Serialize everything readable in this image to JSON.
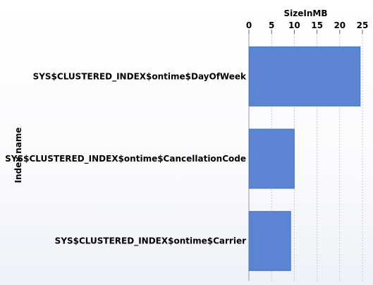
{
  "chart_data": {
    "type": "bar",
    "orientation": "horizontal",
    "xlabel": "SizeInMB",
    "ylabel": "Index name",
    "categories": [
      "SYS$CLUSTERED_INDEX$ontime$DayOfWeek",
      "SYS$CLUSTERED_INDEX$ontime$CancellationCode",
      "SYS$CLUSTERED_INDEX$ontime$Carrier"
    ],
    "values": [
      24.5,
      10.0,
      9.2
    ],
    "xlim": [
      0,
      25
    ],
    "xticks": [
      0,
      5,
      10,
      15,
      20,
      25
    ],
    "x_axis_position": "top",
    "grid": true,
    "bar_color": "#5b85d2"
  }
}
